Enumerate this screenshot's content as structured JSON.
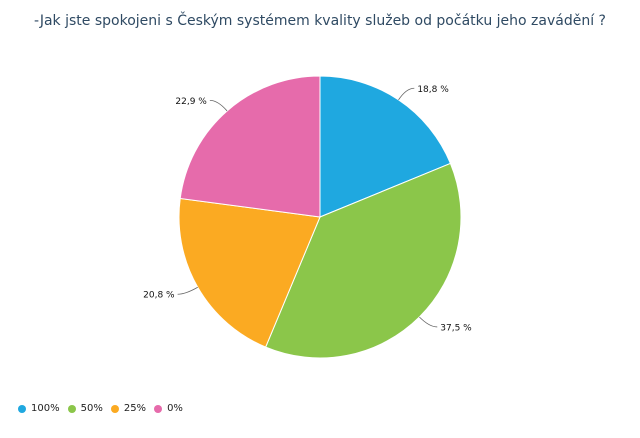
{
  "chart_data": {
    "type": "pie",
    "title": "-Jak jste spokojeni s Českým systémem kvality služeb od počátku jeho zavádění ?",
    "categories": [
      "100%",
      "50%",
      "25%",
      "0%"
    ],
    "values": [
      18.8,
      37.5,
      20.8,
      22.9
    ],
    "labels": [
      "18,8 %",
      "37,5 %",
      "20,8 %",
      "22,9 %"
    ],
    "colors": [
      "#1fa8e0",
      "#8bc64a",
      "#fbaa22",
      "#e66bab"
    ],
    "legend_position": "bottom-left"
  }
}
